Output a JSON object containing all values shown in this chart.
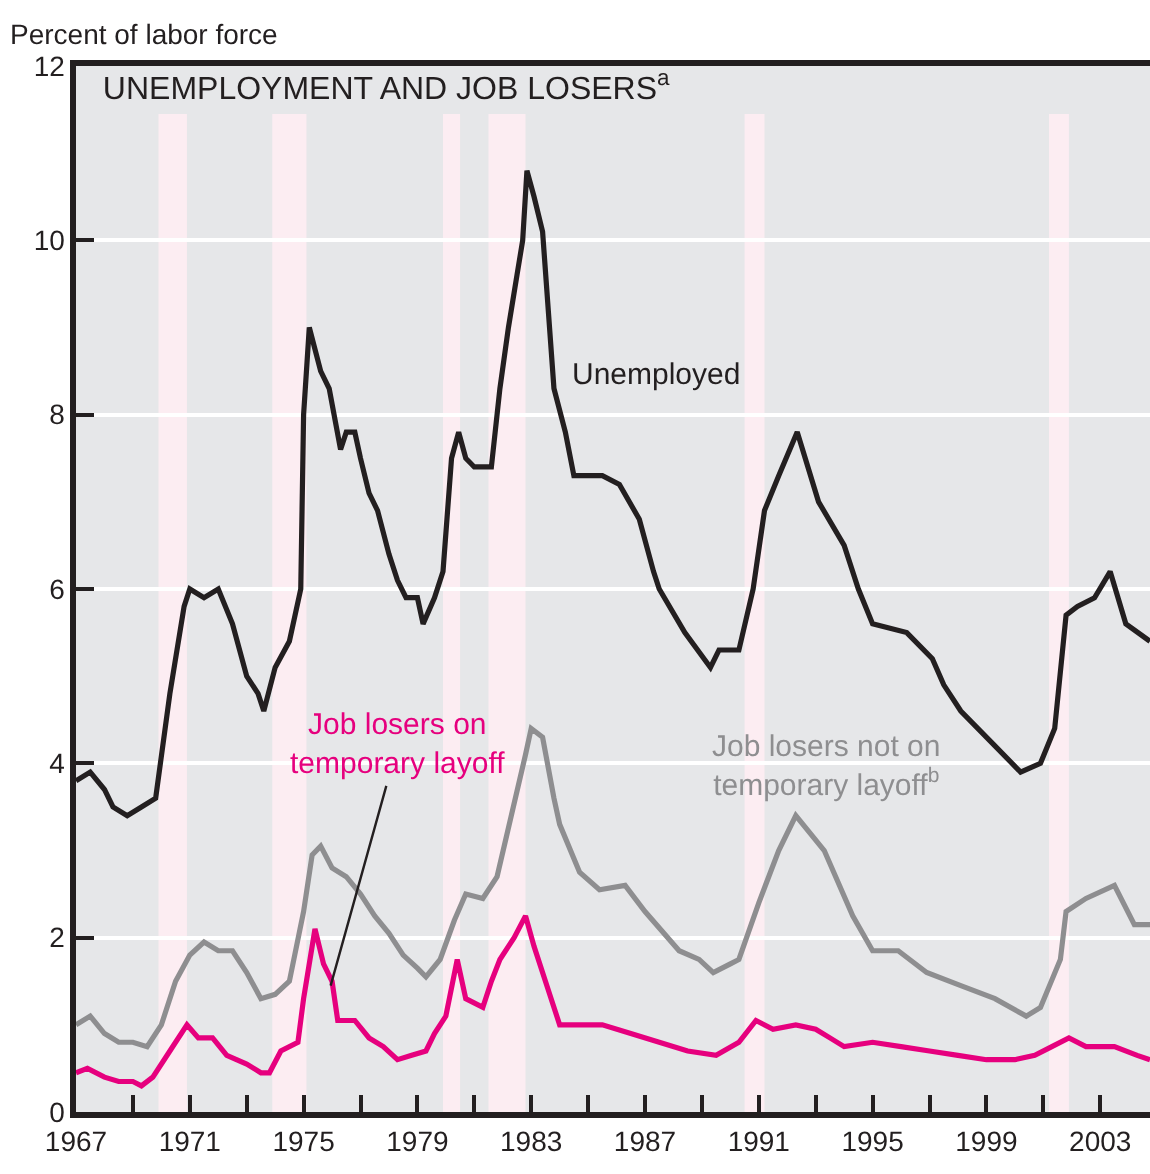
{
  "chart_data": {
    "type": "line",
    "title": "UNEMPLOYMENT AND JOB LOSERS$^{a}$",
    "ylabel": "Percent of labor force",
    "xlim": [
      1967,
      2004.75
    ],
    "ylim": [
      0,
      12
    ],
    "xticks": [
      1967,
      {
        "value": 1969,
        "label": null
      },
      1971,
      {
        "value": 1973,
        "label": null
      },
      1975,
      {
        "value": 1977,
        "label": null
      },
      1979,
      {
        "value": 1981,
        "label": null
      },
      1983,
      {
        "value": 1985,
        "label": null
      },
      1987,
      {
        "value": 1989,
        "label": null
      },
      1991,
      {
        "value": 1993,
        "label": null
      },
      1995,
      {
        "value": 1997,
        "label": null
      },
      1999,
      {
        "value": 2001,
        "label": null
      },
      2003
    ],
    "yticks": [
      0,
      2,
      4,
      6,
      8,
      10,
      12
    ],
    "grid": "y",
    "legend": false,
    "marker": "none",
    "line_style": "solid",
    "bands": [
      {
        "axis": "x",
        "from": 1969.9,
        "to": 1970.9,
        "color": "#fcedf2"
      },
      {
        "axis": "x",
        "from": 1973.9,
        "to": 1975.1,
        "color": "#fcedf2"
      },
      {
        "axis": "x",
        "from": 1979.9,
        "to": 1980.5,
        "color": "#fcedf2"
      },
      {
        "axis": "x",
        "from": 1981.5,
        "to": 1982.8,
        "color": "#fcedf2"
      },
      {
        "axis": "x",
        "from": 1990.5,
        "to": 1991.2,
        "color": "#fcedf2"
      },
      {
        "axis": "x",
        "from": 2001.2,
        "to": 2001.9,
        "color": "#fcedf2"
      }
    ],
    "series": [
      {
        "name": "Unemployed",
        "color": "#231f20",
        "x": [
          1967.0,
          1967.5,
          1968.0,
          1968.3,
          1968.8,
          1969.3,
          1969.8,
          1970.3,
          1970.8,
          1971.0,
          1971.5,
          1972.0,
          1972.5,
          1973.0,
          1973.4,
          1973.6,
          1974.0,
          1974.5,
          1974.9,
          1975.0,
          1975.2,
          1975.6,
          1975.9,
          1976.3,
          1976.5,
          1976.8,
          1977.0,
          1977.3,
          1977.6,
          1978.0,
          1978.3,
          1978.6,
          1979.0,
          1979.2,
          1979.6,
          1979.9,
          1980.2,
          1980.45,
          1980.7,
          1981.0,
          1981.3,
          1981.6,
          1981.9,
          1982.2,
          1982.5,
          1982.7,
          1982.85,
          1983.1,
          1983.4,
          1983.8,
          1984.2,
          1984.5,
          1985.0,
          1985.5,
          1986.1,
          1986.8,
          1987.3,
          1987.5,
          1988.4,
          1989.3,
          1989.6,
          1990.3,
          1990.8,
          1991.2,
          1991.7,
          1992.35,
          1993.1,
          1994.0,
          1994.5,
          1995.0,
          1996.2,
          1997.1,
          1997.5,
          1998.1,
          1999.3,
          2000.2,
          2000.9,
          2001.4,
          2001.8,
          2002.2,
          2002.8,
          2003.35,
          2003.9,
          2004.75
        ],
        "values": [
          3.8,
          3.9,
          3.7,
          3.5,
          3.4,
          3.5,
          3.6,
          4.8,
          5.8,
          6.0,
          5.9,
          6.0,
          5.6,
          5.0,
          4.8,
          4.6,
          5.1,
          5.4,
          6.0,
          8.0,
          9.0,
          8.5,
          8.3,
          7.6,
          7.8,
          7.8,
          7.5,
          7.1,
          6.9,
          6.4,
          6.1,
          5.9,
          5.9,
          5.6,
          5.9,
          6.2,
          7.5,
          7.8,
          7.5,
          7.4,
          7.4,
          7.4,
          8.3,
          9.0,
          9.6,
          10.0,
          10.8,
          10.5,
          10.1,
          8.3,
          7.8,
          7.3,
          7.3,
          7.3,
          7.2,
          6.8,
          6.2,
          6.0,
          5.5,
          5.1,
          5.3,
          5.3,
          6.0,
          6.9,
          7.3,
          7.8,
          7.0,
          6.5,
          6.0,
          5.6,
          5.5,
          5.2,
          4.9,
          4.6,
          4.2,
          3.9,
          4.0,
          4.4,
          5.7,
          5.8,
          5.9,
          6.2,
          5.6,
          5.4
        ]
      },
      {
        "name": "Job losers not on temporary layoff$^{b}$",
        "color": "#8e8e90",
        "x": [
          1967.0,
          1967.5,
          1968.0,
          1968.5,
          1969.0,
          1969.5,
          1970.0,
          1970.5,
          1971.0,
          1971.5,
          1972.0,
          1972.5,
          1973.0,
          1973.5,
          1974.0,
          1974.5,
          1975.0,
          1975.3,
          1975.6,
          1976.0,
          1976.5,
          1977.0,
          1977.5,
          1978.0,
          1978.5,
          1979.0,
          1979.3,
          1979.8,
          1980.3,
          1980.7,
          1981.3,
          1981.8,
          1982.3,
          1982.8,
          1983.0,
          1983.4,
          1983.8,
          1984.0,
          1984.7,
          1985.4,
          1986.3,
          1987.0,
          1988.2,
          1988.9,
          1989.4,
          1990.0,
          1990.3,
          1991.0,
          1991.7,
          1992.3,
          1993.3,
          1994.3,
          1995.0,
          1995.9,
          1996.9,
          1998.1,
          1999.3,
          2000.4,
          2000.9,
          2001.6,
          2001.8,
          2002.5,
          2003.5,
          2004.2,
          2004.75
        ],
        "values": [
          1.0,
          1.1,
          0.9,
          0.8,
          0.8,
          0.75,
          1.0,
          1.5,
          1.8,
          1.95,
          1.85,
          1.85,
          1.6,
          1.3,
          1.35,
          1.5,
          2.3,
          2.95,
          3.05,
          2.8,
          2.7,
          2.5,
          2.25,
          2.05,
          1.8,
          1.65,
          1.55,
          1.75,
          2.2,
          2.5,
          2.45,
          2.7,
          3.4,
          4.1,
          4.4,
          4.3,
          3.6,
          3.3,
          2.75,
          2.55,
          2.6,
          2.3,
          1.85,
          1.75,
          1.6,
          1.7,
          1.75,
          2.4,
          3.0,
          3.4,
          3.0,
          2.25,
          1.85,
          1.85,
          1.6,
          1.45,
          1.3,
          1.1,
          1.2,
          1.75,
          2.3,
          2.45,
          2.6,
          2.15,
          2.15
        ]
      },
      {
        "name": "Job losers on temporary layoff",
        "color": "#e6007e",
        "x": [
          1967.0,
          1967.4,
          1968.0,
          1968.5,
          1969.0,
          1969.3,
          1969.7,
          1970.3,
          1970.9,
          1971.3,
          1971.8,
          1972.3,
          1973.0,
          1973.5,
          1973.8,
          1974.2,
          1974.8,
          1975.0,
          1975.4,
          1975.7,
          1976.0,
          1976.2,
          1976.8,
          1977.3,
          1977.8,
          1978.3,
          1978.8,
          1979.3,
          1979.6,
          1980.0,
          1980.4,
          1980.7,
          1981.3,
          1981.6,
          1981.9,
          1982.4,
          1982.8,
          1983.1,
          1983.6,
          1984.0,
          1984.7,
          1985.5,
          1986.5,
          1987.5,
          1988.5,
          1989.5,
          1990.3,
          1990.9,
          1991.5,
          1992.3,
          1993.0,
          1993.5,
          1994.0,
          1995.0,
          1996.0,
          1997.0,
          1998.0,
          1999.0,
          2000.0,
          2000.7,
          2001.3,
          2001.9,
          2002.5,
          2003.5,
          2004.3,
          2004.75
        ],
        "values": [
          0.45,
          0.5,
          0.4,
          0.35,
          0.35,
          0.3,
          0.4,
          0.7,
          1.0,
          0.85,
          0.85,
          0.65,
          0.55,
          0.45,
          0.45,
          0.7,
          0.8,
          1.3,
          2.1,
          1.7,
          1.5,
          1.05,
          1.05,
          0.85,
          0.75,
          0.6,
          0.65,
          0.7,
          0.9,
          1.1,
          1.75,
          1.3,
          1.2,
          1.5,
          1.75,
          2.0,
          2.25,
          1.9,
          1.4,
          1.0,
          1.0,
          1.0,
          0.9,
          0.8,
          0.7,
          0.65,
          0.8,
          1.05,
          0.95,
          1.0,
          0.95,
          0.85,
          0.75,
          0.8,
          0.75,
          0.7,
          0.65,
          0.6,
          0.6,
          0.65,
          0.75,
          0.85,
          0.75,
          0.75,
          0.65,
          0.6
        ]
      }
    ]
  }
}
